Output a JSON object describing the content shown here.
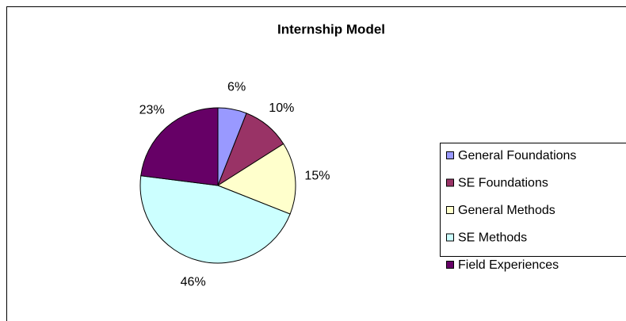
{
  "chart_data": {
    "type": "pie",
    "title": "Internship Model",
    "categories": [
      "General Foundations",
      "SE Foundations",
      "General Methods",
      "SE Methods",
      "Field Experiences"
    ],
    "values": [
      6,
      10,
      15,
      46,
      23
    ],
    "value_labels": [
      "6%",
      "10%",
      "15%",
      "46%",
      "23%"
    ],
    "colors": [
      "#9999ff",
      "#993366",
      "#ffffcc",
      "#ccffff",
      "#660066"
    ],
    "legend": "right"
  }
}
